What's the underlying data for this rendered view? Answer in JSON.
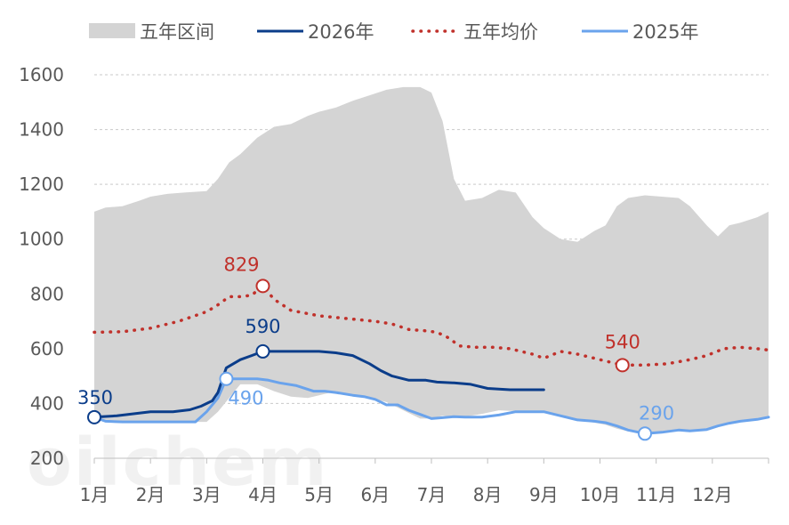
{
  "chart_data": {
    "type": "area",
    "title": "",
    "xlabel": "",
    "ylabel": "",
    "ylim": [
      200,
      1600
    ],
    "yticks": [
      200,
      400,
      600,
      800,
      1000,
      1200,
      1400,
      1600
    ],
    "x_range": [
      1,
      13
    ],
    "x_ticks": [
      {
        "x": 1,
        "label": "1月"
      },
      {
        "x": 2,
        "label": "2月"
      },
      {
        "x": 3,
        "label": "3月"
      },
      {
        "x": 4,
        "label": "4月"
      },
      {
        "x": 5,
        "label": "5月"
      },
      {
        "x": 6,
        "label": "6月"
      },
      {
        "x": 7,
        "label": "7月"
      },
      {
        "x": 8,
        "label": "8月"
      },
      {
        "x": 9,
        "label": "9月"
      },
      {
        "x": 10,
        "label": "10月"
      },
      {
        "x": 11,
        "label": "11月"
      },
      {
        "x": 12,
        "label": "12月"
      }
    ],
    "grid": "horizontal-dashed",
    "legend_position": "top",
    "series": [
      {
        "name": "五年区间",
        "kind": "band",
        "color": "#d4d4d4",
        "x": [
          1.0,
          1.2,
          1.5,
          1.8,
          2.0,
          2.3,
          2.6,
          3.0,
          3.2,
          3.4,
          3.6,
          3.9,
          4.2,
          4.5,
          4.8,
          5.0,
          5.3,
          5.6,
          5.9,
          6.2,
          6.5,
          6.8,
          7.0,
          7.2,
          7.4,
          7.6,
          7.9,
          8.2,
          8.5,
          8.8,
          9.0,
          9.3,
          9.6,
          9.9,
          10.1,
          10.3,
          10.5,
          10.8,
          11.1,
          11.4,
          11.6,
          11.9,
          12.1,
          12.3,
          12.5,
          12.8,
          13.0
        ],
        "upper": [
          1100,
          1115,
          1120,
          1140,
          1155,
          1165,
          1170,
          1175,
          1220,
          1280,
          1310,
          1370,
          1410,
          1420,
          1450,
          1465,
          1480,
          1505,
          1525,
          1545,
          1555,
          1555,
          1535,
          1430,
          1220,
          1140,
          1150,
          1180,
          1170,
          1080,
          1040,
          1000,
          990,
          1030,
          1050,
          1120,
          1150,
          1160,
          1155,
          1150,
          1120,
          1050,
          1010,
          1050,
          1060,
          1080,
          1100
        ],
        "lower": [
          340,
          335,
          333,
          333,
          333,
          333,
          333,
          333,
          370,
          420,
          470,
          470,
          445,
          425,
          420,
          430,
          445,
          430,
          420,
          405,
          375,
          345,
          345,
          355,
          352,
          352,
          362,
          375,
          372,
          372,
          370,
          352,
          340,
          330,
          322,
          308,
          298,
          290,
          298,
          303,
          300,
          305,
          320,
          330,
          335,
          342,
          350
        ]
      },
      {
        "name": "2026年",
        "kind": "line",
        "color": "#0b3d8a",
        "x": [
          1.0,
          1.4,
          1.8,
          2.0,
          2.4,
          2.7,
          2.9,
          3.1,
          3.2,
          3.35,
          3.6,
          3.8,
          4.0,
          4.5,
          5.0,
          5.3,
          5.6,
          5.9,
          6.1,
          6.3,
          6.6,
          6.9,
          7.1,
          7.4,
          7.7,
          8.0,
          8.4,
          8.7,
          9.0
        ],
        "y": [
          350,
          355,
          365,
          370,
          370,
          377,
          390,
          410,
          440,
          530,
          560,
          575,
          590,
          590,
          590,
          585,
          575,
          545,
          520,
          500,
          485,
          485,
          478,
          475,
          470,
          455,
          450,
          450,
          450
        ]
      },
      {
        "name": "五年均价",
        "kind": "line",
        "style": "dotted",
        "color": "#c0312b",
        "x": [
          1.0,
          1.5,
          2.0,
          2.5,
          3.0,
          3.2,
          3.4,
          3.6,
          3.8,
          4.0,
          4.2,
          4.5,
          5.0,
          5.5,
          6.0,
          6.3,
          6.6,
          6.9,
          7.1,
          7.3,
          7.5,
          7.8,
          8.1,
          8.4,
          8.8,
          9.0,
          9.3,
          9.6,
          9.9,
          10.2,
          10.4,
          10.8,
          11.2,
          11.6,
          11.9,
          12.2,
          12.5,
          12.8,
          13.0
        ],
        "y": [
          660,
          662,
          675,
          700,
          735,
          760,
          790,
          790,
          795,
          829,
          780,
          740,
          720,
          710,
          700,
          690,
          670,
          665,
          660,
          640,
          610,
          605,
          605,
          600,
          580,
          565,
          590,
          580,
          565,
          550,
          540,
          540,
          545,
          560,
          575,
          600,
          605,
          600,
          595
        ]
      },
      {
        "name": "2025年",
        "kind": "line",
        "color": "#6aa3ec",
        "x": [
          1.0,
          1.2,
          1.5,
          1.8,
          2.0,
          2.3,
          2.6,
          2.8,
          3.0,
          3.2,
          3.35,
          3.6,
          3.9,
          4.1,
          4.3,
          4.6,
          4.9,
          5.1,
          5.3,
          5.6,
          5.8,
          6.0,
          6.2,
          6.4,
          6.6,
          6.8,
          7.0,
          7.2,
          7.4,
          7.6,
          7.9,
          8.2,
          8.5,
          8.8,
          9.0,
          9.3,
          9.6,
          9.9,
          10.1,
          10.3,
          10.5,
          10.8,
          11.1,
          11.4,
          11.6,
          11.9,
          12.1,
          12.3,
          12.5,
          12.8,
          13.0
        ],
        "y": [
          350,
          335,
          333,
          333,
          333,
          333,
          333,
          333,
          370,
          420,
          490,
          490,
          490,
          485,
          475,
          465,
          445,
          445,
          440,
          430,
          425,
          415,
          395,
          395,
          375,
          360,
          345,
          348,
          352,
          350,
          350,
          358,
          370,
          370,
          370,
          355,
          340,
          335,
          330,
          318,
          303,
          290,
          295,
          303,
          300,
          305,
          318,
          328,
          335,
          342,
          350
        ]
      }
    ],
    "annotations": [
      {
        "series": "2026年",
        "x": 1.0,
        "y": 350,
        "label": "350"
      },
      {
        "series": "2026年",
        "x": 4.0,
        "y": 590,
        "label": "590"
      },
      {
        "series": "五年均价",
        "x": 4.0,
        "y": 829,
        "label": "829"
      },
      {
        "series": "五年均价",
        "x": 10.4,
        "y": 540,
        "label": "540"
      },
      {
        "series": "2025年",
        "x": 3.35,
        "y": 490,
        "label": "490"
      },
      {
        "series": "2025年",
        "x": 10.8,
        "y": 290,
        "label": "290"
      }
    ]
  },
  "watermark": "oilchem"
}
